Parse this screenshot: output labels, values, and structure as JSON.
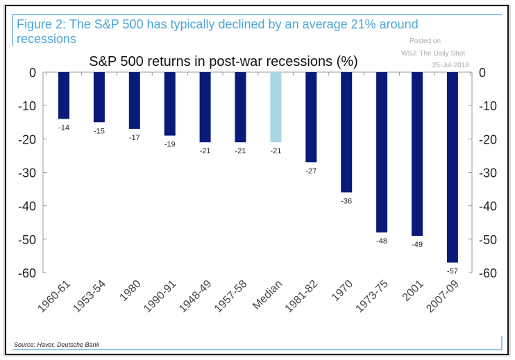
{
  "header": {
    "figure_title": "Figure 2: The S&P 500 has typically declined by an average 21% around recessions",
    "figure_title_line1": "Figure 2: The S&P 500 has typically declined by an average 21% around",
    "figure_title_line2": "recessions",
    "watermark_line1": "Posted on",
    "watermark_line2": "WSJ: The Daily Shot",
    "watermark_line3": "25-Jul-2018"
  },
  "footer": {
    "source": "Source: Haver, Deutsche Bank"
  },
  "colors": {
    "bar": "#0a1a78",
    "median_bar": "#a9d6e5",
    "title": "#4aa6d8",
    "frame": "#6ab6e0"
  },
  "chart_data": {
    "type": "bar",
    "title": "S&P 500 returns in post-war recessions (%)",
    "categories": [
      "1960-61",
      "1953-54",
      "1980",
      "1990-91",
      "1948-49",
      "1957-58",
      "Median",
      "1981-82",
      "1970",
      "1973-75",
      "2001",
      "2007-09"
    ],
    "values": [
      -14,
      -15,
      -17,
      -19,
      -21,
      -21,
      -21,
      -27,
      -36,
      -48,
      -49,
      -57
    ],
    "highlight": "Median",
    "ylim": [
      -60,
      0
    ],
    "yticks": [
      0,
      -10,
      -20,
      -30,
      -40,
      -50,
      -60
    ],
    "ytick_labels": [
      "0",
      "-10",
      "-20",
      "-30",
      "-40",
      "-50",
      "-60"
    ],
    "xlabel": "",
    "ylabel": "",
    "grid": false,
    "axes": "left and right"
  }
}
